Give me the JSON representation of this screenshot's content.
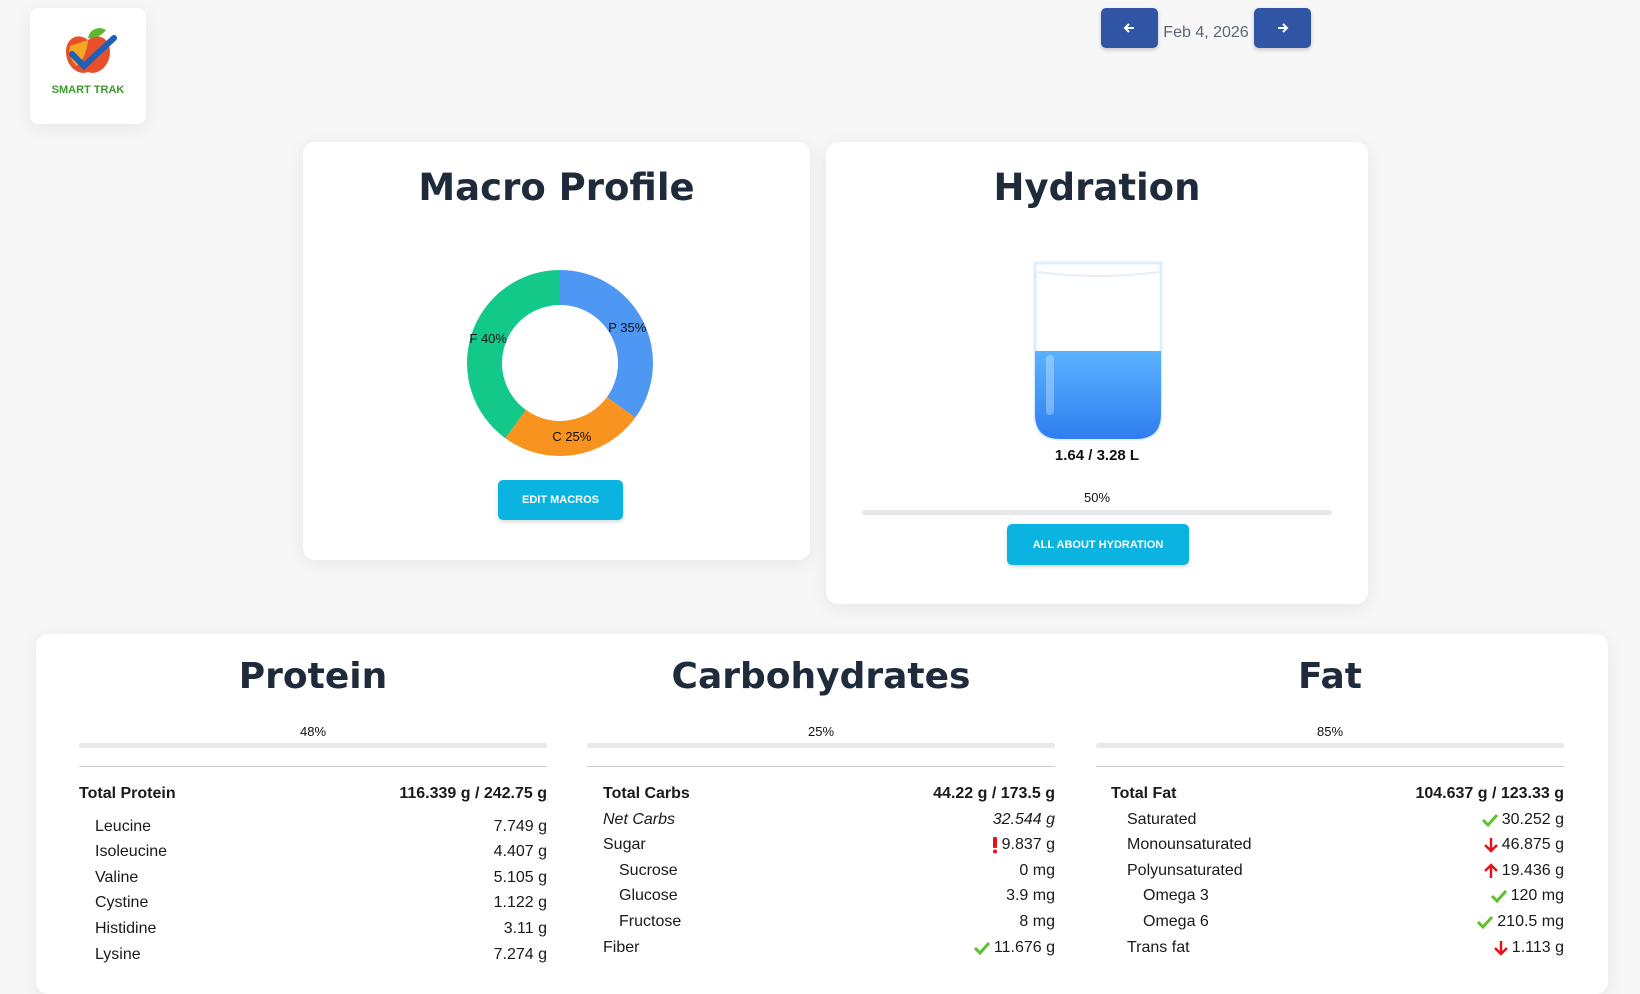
{
  "logo": {
    "text": "SMART TRAK"
  },
  "date_nav": {
    "date": "Feb 4, 2026"
  },
  "macro_profile": {
    "title": "Macro Profile",
    "segments": [
      {
        "value": 35,
        "label": "P 35%",
        "color": "#4e97f3"
      },
      {
        "value": 25,
        "label": "C 25%",
        "color": "#f7931e"
      },
      {
        "value": 40,
        "label": "F 40%",
        "color": "#12c98a"
      }
    ],
    "button": "EDIT MACROS"
  },
  "hydration": {
    "title": "Hydration",
    "amount": "1.64 / 3.28 L",
    "progress": {
      "value": 50,
      "label": "50%",
      "color": "#e3141c"
    },
    "button": "ALL ABOUT HYDRATION"
  },
  "nutrients": {
    "columns": [
      {
        "title": "Protein",
        "progress": {
          "value": 48,
          "label": "48%",
          "color": "#e3141c"
        },
        "rows": [
          {
            "name": "Total Protein",
            "amount": "116.339 g / 242.75 g",
            "emphasis": "bold",
            "children": [
              {
                "name": "Leucine",
                "amount": "7.749 g"
              },
              {
                "name": "Isoleucine",
                "amount": "4.407 g"
              },
              {
                "name": "Valine",
                "amount": "5.105 g"
              },
              {
                "name": "Cystine",
                "amount": "1.122 g"
              },
              {
                "name": "Histidine",
                "amount": "3.11 g"
              },
              {
                "name": "Lysine",
                "amount": "7.274 g"
              }
            ]
          }
        ]
      },
      {
        "title": "Carbohydrates",
        "progress": {
          "value": 25,
          "label": "25%",
          "color": "#e3141c"
        },
        "rows": [
          {
            "name": "Total Carbs",
            "amount": "44.22 g / 173.5 g",
            "emphasis": "bold"
          },
          {
            "name": "Net Carbs",
            "amount": "32.544 g",
            "emphasis": "italic"
          },
          {
            "name": "Sugar",
            "amount": "9.837 g",
            "status": "alert",
            "children": [
              {
                "name": "Sucrose",
                "amount": "0 mg"
              },
              {
                "name": "Glucose",
                "amount": "3.9 mg"
              },
              {
                "name": "Fructose",
                "amount": "8 mg"
              }
            ]
          },
          {
            "name": "Fiber",
            "amount": "11.676 g",
            "status": "ok"
          }
        ]
      },
      {
        "title": "Fat",
        "progress": {
          "value": 85,
          "label": "85%",
          "color": "#6cc72f"
        },
        "rows": [
          {
            "name": "Total Fat",
            "amount": "104.637 g / 123.33 g",
            "emphasis": "bold",
            "children": [
              {
                "name": "Saturated",
                "amount": "30.252 g",
                "status": "ok"
              },
              {
                "name": "Monounsaturated",
                "amount": "46.875 g",
                "status": "low"
              },
              {
                "name": "Polyunsaturated",
                "amount": "19.436 g",
                "status": "high",
                "children": [
                  {
                    "name": "Omega 3",
                    "amount": "120 mg",
                    "status": "ok"
                  },
                  {
                    "name": "Omega 6",
                    "amount": "210.5 mg",
                    "status": "ok"
                  }
                ]
              },
              {
                "name": "Trans fat",
                "amount": "1.113 g",
                "status": "low"
              }
            ]
          }
        ]
      }
    ]
  }
}
